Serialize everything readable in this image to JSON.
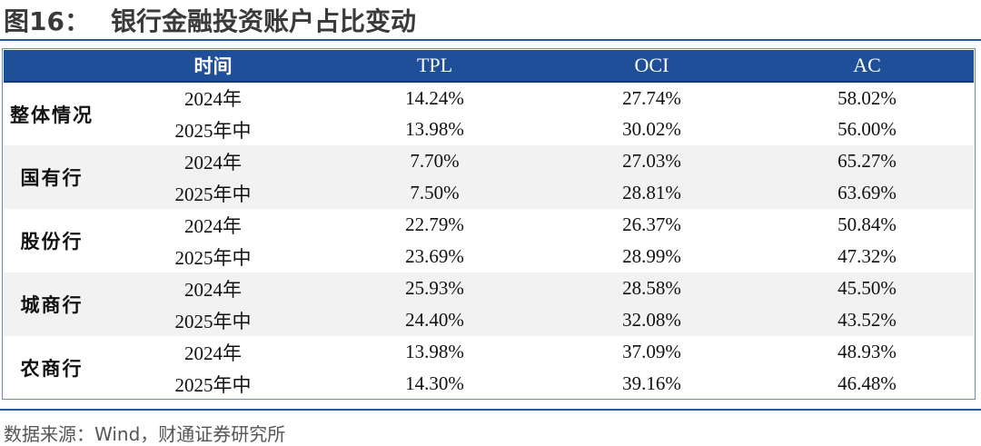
{
  "figure": {
    "label": "图16：",
    "title": "银行金融投资账户占比变动"
  },
  "table": {
    "headers": {
      "group": "",
      "period": "时间",
      "tpl": "TPL",
      "oci": "OCI",
      "ac": "AC"
    },
    "groups": [
      {
        "name": "整体情况",
        "rows": [
          {
            "period": "2024年",
            "tpl": "14.24%",
            "oci": "27.74%",
            "ac": "58.02%"
          },
          {
            "period": "2025年中",
            "tpl": "13.98%",
            "oci": "30.02%",
            "ac": "56.00%"
          }
        ]
      },
      {
        "name": "国有行",
        "rows": [
          {
            "period": "2024年",
            "tpl": "7.70%",
            "oci": "27.03%",
            "ac": "65.27%"
          },
          {
            "period": "2025年中",
            "tpl": "7.50%",
            "oci": "28.81%",
            "ac": "63.69%"
          }
        ]
      },
      {
        "name": "股份行",
        "rows": [
          {
            "period": "2024年",
            "tpl": "22.79%",
            "oci": "26.37%",
            "ac": "50.84%"
          },
          {
            "period": "2025年中",
            "tpl": "23.69%",
            "oci": "28.99%",
            "ac": "47.32%"
          }
        ]
      },
      {
        "name": "城商行",
        "rows": [
          {
            "period": "2024年",
            "tpl": "25.93%",
            "oci": "28.58%",
            "ac": "45.50%"
          },
          {
            "period": "2025年中",
            "tpl": "24.40%",
            "oci": "32.08%",
            "ac": "43.52%"
          }
        ]
      },
      {
        "name": "农商行",
        "rows": [
          {
            "period": "2024年",
            "tpl": "13.98%",
            "oci": "37.09%",
            "ac": "48.93%"
          },
          {
            "period": "2025年中",
            "tpl": "14.30%",
            "oci": "39.16%",
            "ac": "46.48%"
          }
        ]
      }
    ]
  },
  "source": "数据来源：Wind，财通证券研究所",
  "colors": {
    "header_bg": "#1f4f99",
    "rule": "#1f5aa6",
    "shade": "#f2f2f2"
  }
}
